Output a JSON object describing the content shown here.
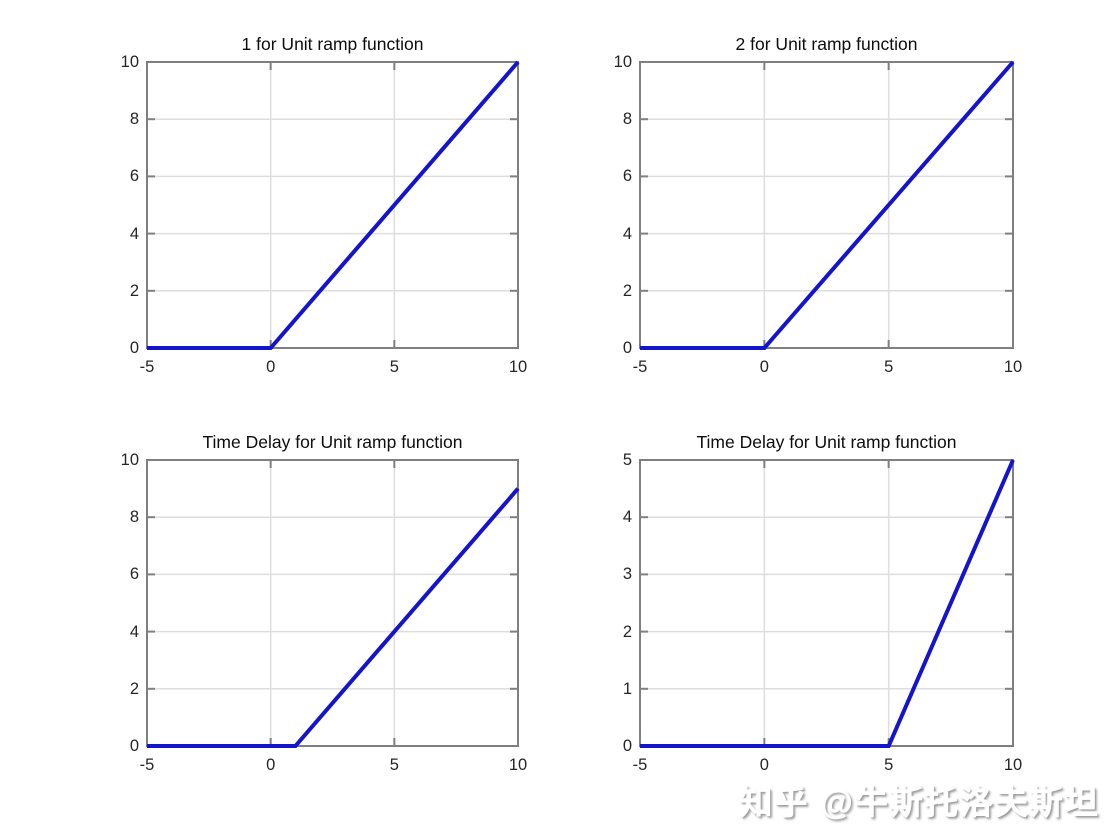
{
  "style": {
    "line_color": "#1414CC",
    "axis_color": "#7F7F7F",
    "grid_color": "#DEDEDE",
    "tick_label_color": "#262626",
    "title_color": "#0d0d0d",
    "background": "#ffffff"
  },
  "watermark": {
    "text": "知乎 @牛斯托洛夫斯坦"
  },
  "chart_data": [
    {
      "type": "line",
      "title": "1 for Unit ramp function",
      "x": [
        -5,
        0,
        10
      ],
      "y": [
        0,
        0,
        10
      ],
      "xlim": [
        -5,
        10
      ],
      "ylim": [
        0,
        10
      ],
      "xticks": [
        -5,
        0,
        5,
        10
      ],
      "yticks": [
        0,
        2,
        4,
        6,
        8,
        10
      ],
      "grid": true,
      "legend": "none"
    },
    {
      "type": "line",
      "title": "2 for Unit ramp function",
      "x": [
        -5,
        0,
        10
      ],
      "y": [
        0,
        0,
        10
      ],
      "xlim": [
        -5,
        10
      ],
      "ylim": [
        0,
        10
      ],
      "xticks": [
        -5,
        0,
        5,
        10
      ],
      "yticks": [
        0,
        2,
        4,
        6,
        8,
        10
      ],
      "grid": true,
      "legend": "none"
    },
    {
      "type": "line",
      "title": "Time Delay for Unit ramp function",
      "x": [
        -5,
        1,
        10
      ],
      "y": [
        0,
        0,
        9
      ],
      "xlim": [
        -5,
        10
      ],
      "ylim": [
        0,
        10
      ],
      "xticks": [
        -5,
        0,
        5,
        10
      ],
      "yticks": [
        0,
        2,
        4,
        6,
        8,
        10
      ],
      "grid": true,
      "legend": "none"
    },
    {
      "type": "line",
      "title": "Time Delay for Unit ramp function",
      "x": [
        -5,
        5,
        10
      ],
      "y": [
        0,
        0,
        5
      ],
      "xlim": [
        -5,
        10
      ],
      "ylim": [
        0,
        5
      ],
      "xticks": [
        -5,
        0,
        5,
        10
      ],
      "yticks": [
        0,
        1,
        2,
        3,
        4,
        5
      ],
      "grid": true,
      "legend": "none"
    }
  ]
}
